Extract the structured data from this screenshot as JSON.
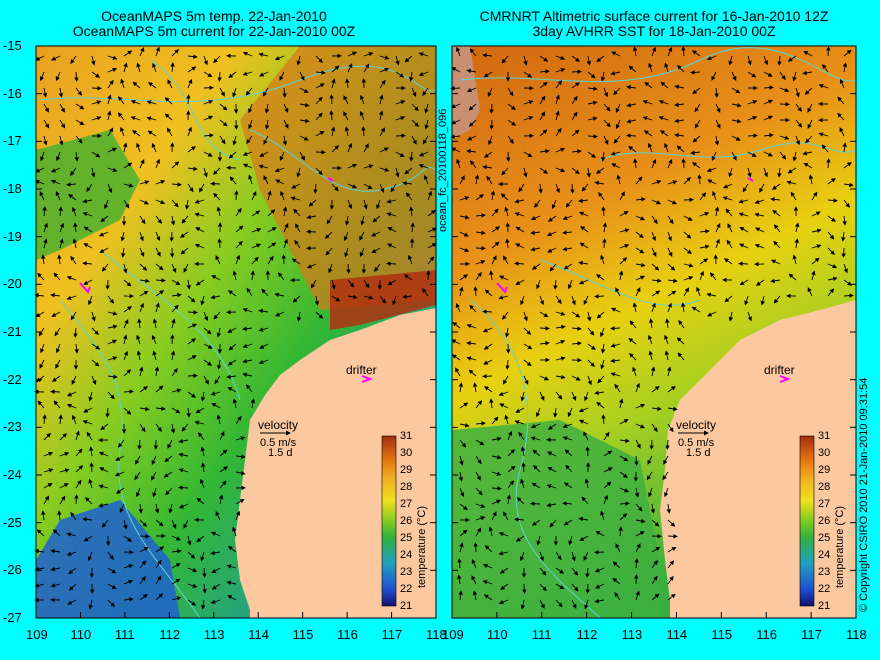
{
  "left_panel": {
    "title_line1": "OceanMAPS 5m temp. 22-Jan-2010",
    "title_line2": "OceanMAPS 5m current for 22-Jan-2010 00Z",
    "drifter_label": "drifter",
    "velocity_label": "velocity",
    "velocity_scale": "0.5 m/s",
    "velocity_days": "1.5 d"
  },
  "right_panel": {
    "title_line1": "CMRNRT Altimetric surface current for 16-Jan-2010 12Z",
    "title_line2": "3day AVHRR SST for 18-Jan-2010 00Z",
    "drifter_label": "drifter",
    "velocity_label": "velocity",
    "velocity_scale": "0.5 m/s",
    "velocity_days": "1.5 d"
  },
  "file_id": "ocean_fc_20100118_096",
  "copyright": "© Copyright CSIRO 2010   21-Jan-2010 09:31:54",
  "colorbar": {
    "label": "temperature (°C)",
    "ticks": [
      "31",
      "30",
      "29",
      "28",
      "27",
      "26",
      "25",
      "24",
      "23",
      "22",
      "21"
    ]
  },
  "axes": {
    "lat_ticks": [
      "-15",
      "-16",
      "-17",
      "-18",
      "-19",
      "-20",
      "-21",
      "-22",
      "-23",
      "-24",
      "-25",
      "-26",
      "-27"
    ],
    "lon_ticks": [
      "109",
      "110",
      "111",
      "112",
      "113",
      "114",
      "115",
      "116",
      "117",
      "118"
    ]
  },
  "colors": {
    "background": "#00ffff",
    "land": "#fbc8a0",
    "contour": "#5fd3d3",
    "drifter": "#ff00ff"
  }
}
